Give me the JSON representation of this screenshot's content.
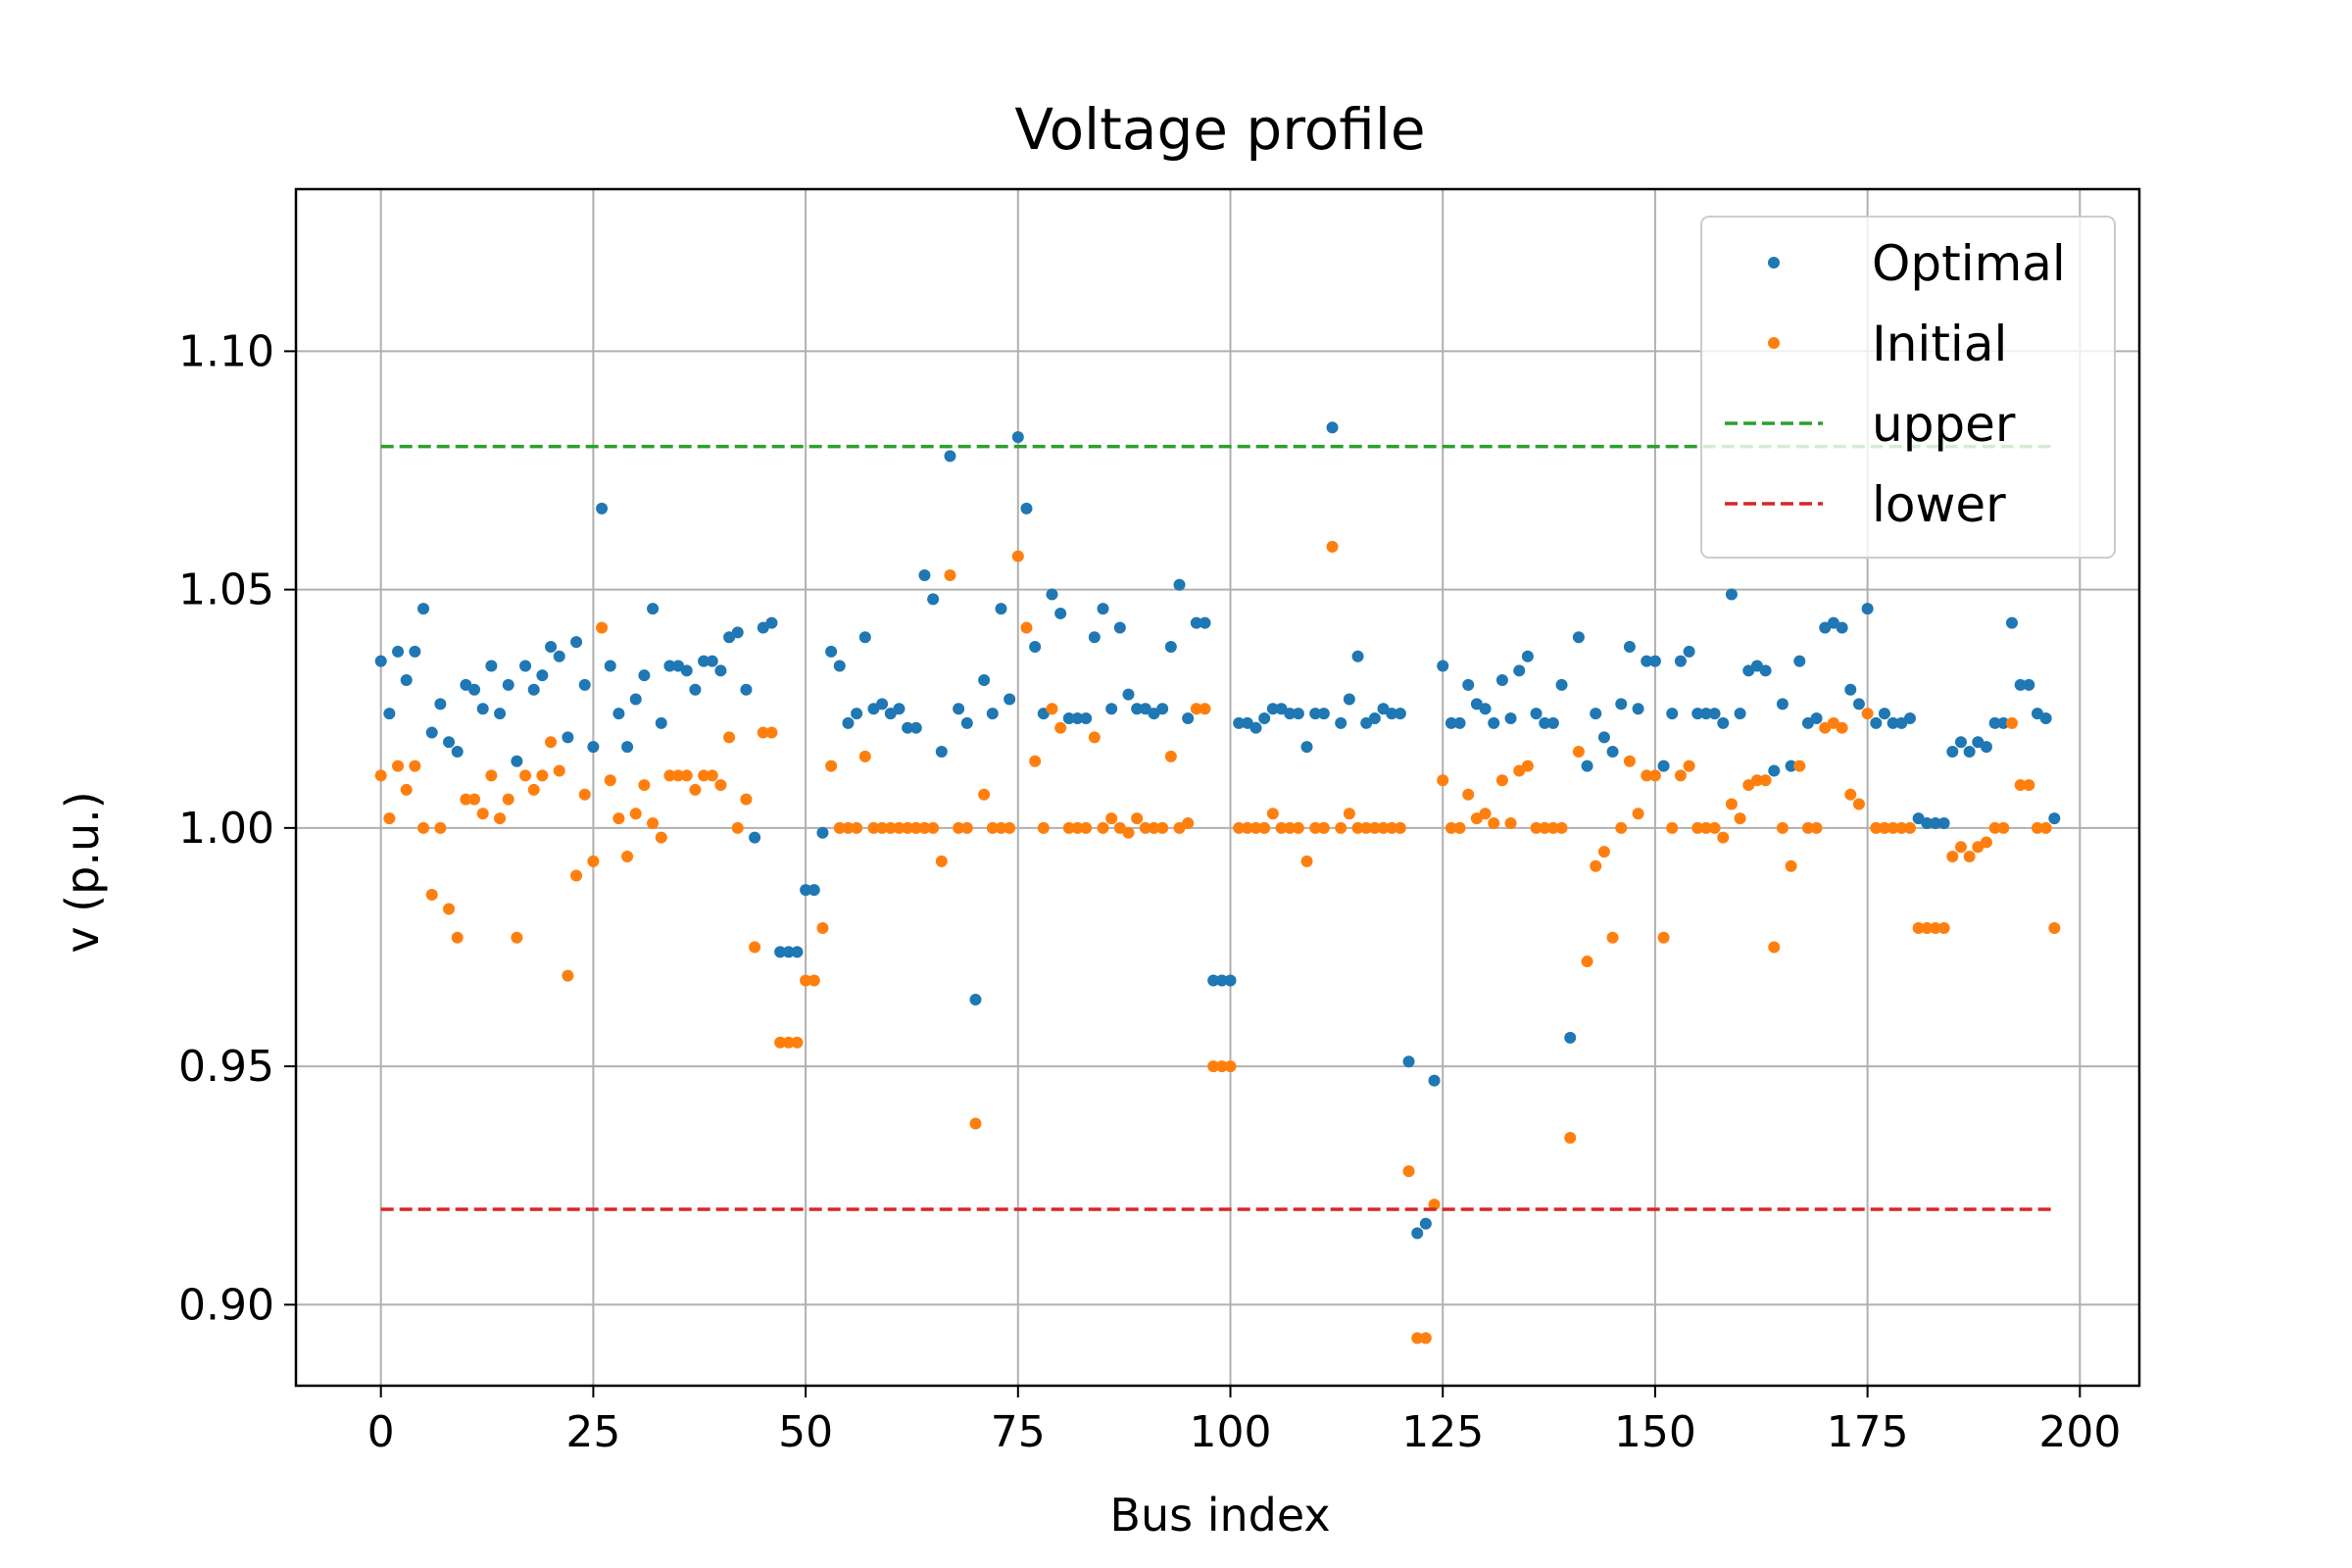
{
  "chart_data": {
    "type": "scatter",
    "title": "Voltage profile",
    "xlabel": "Bus index",
    "ylabel": "v (p.u.)",
    "xlim": [
      -10,
      207
    ],
    "ylim": [
      0.883,
      1.134
    ],
    "xticks": [
      0,
      25,
      50,
      75,
      100,
      125,
      150,
      175,
      200
    ],
    "yticks": [
      0.9,
      0.95,
      1.0,
      1.05,
      1.1
    ],
    "xtick_labels": [
      "0",
      "25",
      "50",
      "75",
      "100",
      "125",
      "150",
      "175",
      "200"
    ],
    "ytick_labels": [
      "0.90",
      "0.95",
      "1.00",
      "1.05",
      "1.10"
    ],
    "grid": true,
    "legend_position": "top-right",
    "series": [
      {
        "name": "Optimal",
        "kind": "points",
        "color": "#1f77b4",
        "x": [
          0,
          1,
          2,
          3,
          4,
          5,
          6,
          7,
          8,
          9,
          10,
          11,
          12,
          13,
          14,
          15,
          16,
          17,
          18,
          19,
          20,
          21,
          22,
          23,
          24,
          25,
          26,
          27,
          28,
          29,
          30,
          31,
          32,
          33,
          34,
          35,
          36,
          37,
          38,
          39,
          40,
          41,
          42,
          43,
          44,
          45,
          46,
          47,
          48,
          49,
          50,
          51,
          52,
          53,
          54,
          55,
          56,
          57,
          58,
          59,
          60,
          61,
          62,
          63,
          64,
          65,
          66,
          67,
          68,
          69,
          70,
          71,
          72,
          73,
          74,
          75,
          76,
          77,
          78,
          79,
          80,
          81,
          82,
          83,
          84,
          85,
          86,
          87,
          88,
          89,
          90,
          91,
          92,
          93,
          94,
          95,
          96,
          97,
          98,
          99,
          100,
          101,
          102,
          103,
          104,
          105,
          106,
          107,
          108,
          109,
          110,
          111,
          112,
          113,
          114,
          115,
          116,
          117,
          118,
          119,
          120,
          121,
          122,
          123,
          124,
          125,
          126,
          127,
          128,
          129,
          130,
          131,
          132,
          133,
          134,
          135,
          136,
          137,
          138,
          139,
          140,
          141,
          142,
          143,
          144,
          145,
          146,
          147,
          148,
          149,
          150,
          151,
          152,
          153,
          154,
          155,
          156,
          157,
          158,
          159,
          160,
          161,
          162,
          163,
          164,
          165,
          166,
          167,
          168,
          169,
          170,
          171,
          172,
          173,
          174,
          175,
          176,
          177,
          178,
          179,
          180,
          181,
          182,
          183,
          184,
          185,
          186,
          187,
          188,
          189,
          190,
          191,
          192,
          193,
          194,
          195,
          196,
          197
        ],
        "y": [
          1.035,
          1.024,
          1.037,
          1.031,
          1.037,
          1.046,
          1.02,
          1.026,
          1.018,
          1.016,
          1.03,
          1.029,
          1.025,
          1.034,
          1.024,
          1.03,
          1.014,
          1.034,
          1.029,
          1.032,
          1.038,
          1.036,
          1.019,
          1.039,
          1.03,
          1.017,
          1.067,
          1.034,
          1.024,
          1.017,
          1.027,
          1.032,
          1.046,
          1.022,
          1.034,
          1.034,
          1.033,
          1.029,
          1.035,
          1.035,
          1.033,
          1.04,
          1.041,
          1.029,
          0.998,
          1.042,
          1.043,
          0.974,
          0.974,
          0.974,
          0.987,
          0.987,
          0.999,
          1.037,
          1.034,
          1.022,
          1.024,
          1.04,
          1.025,
          1.026,
          1.024,
          1.025,
          1.021,
          1.021,
          1.053,
          1.048,
          1.016,
          1.078,
          1.025,
          1.022,
          0.964,
          1.031,
          1.024,
          1.046,
          1.027,
          1.082,
          1.067,
          1.038,
          1.024,
          1.049,
          1.045,
          1.023,
          1.023,
          1.023,
          1.04,
          1.046,
          1.025,
          1.042,
          1.028,
          1.025,
          1.025,
          1.024,
          1.025,
          1.038,
          1.051,
          1.023,
          1.043,
          1.043,
          0.968,
          0.968,
          0.968,
          1.022,
          1.022,
          1.021,
          1.023,
          1.025,
          1.025,
          1.024,
          1.024,
          1.017,
          1.024,
          1.024,
          1.084,
          1.022,
          1.027,
          1.036,
          1.022,
          1.023,
          1.025,
          1.024,
          1.024,
          0.951,
          0.915,
          0.917,
          0.947,
          1.034,
          1.022,
          1.022,
          1.03,
          1.026,
          1.025,
          1.022,
          1.031,
          1.023,
          1.033,
          1.036,
          1.024,
          1.022,
          1.022,
          1.03,
          0.956,
          1.04,
          1.013,
          1.024,
          1.019,
          1.016,
          1.026,
          1.038,
          1.025,
          1.035,
          1.035,
          1.013,
          1.024,
          1.035,
          1.037,
          1.024,
          1.024,
          1.024,
          1.022,
          1.049,
          1.024,
          1.033,
          1.034,
          1.033,
          1.012,
          1.026,
          1.013,
          1.035,
          1.022,
          1.023,
          1.042,
          1.043,
          1.042,
          1.029,
          1.026,
          1.046,
          1.022,
          1.024,
          1.022,
          1.022,
          1.023,
          1.002,
          1.001,
          1.001,
          1.001,
          1.016,
          1.018,
          1.016,
          1.018,
          1.017,
          1.022,
          1.022,
          1.043,
          1.03,
          1.03,
          1.024,
          1.023,
          1.002
        ]
      },
      {
        "name": "Initial",
        "kind": "points",
        "color": "#ff7f0e",
        "x": [
          0,
          1,
          2,
          3,
          4,
          5,
          6,
          7,
          8,
          9,
          10,
          11,
          12,
          13,
          14,
          15,
          16,
          17,
          18,
          19,
          20,
          21,
          22,
          23,
          24,
          25,
          26,
          27,
          28,
          29,
          30,
          31,
          32,
          33,
          34,
          35,
          36,
          37,
          38,
          39,
          40,
          41,
          42,
          43,
          44,
          45,
          46,
          47,
          48,
          49,
          50,
          51,
          52,
          53,
          54,
          55,
          56,
          57,
          58,
          59,
          60,
          61,
          62,
          63,
          64,
          65,
          66,
          67,
          68,
          69,
          70,
          71,
          72,
          73,
          74,
          75,
          76,
          77,
          78,
          79,
          80,
          81,
          82,
          83,
          84,
          85,
          86,
          87,
          88,
          89,
          90,
          91,
          92,
          93,
          94,
          95,
          96,
          97,
          98,
          99,
          100,
          101,
          102,
          103,
          104,
          105,
          106,
          107,
          108,
          109,
          110,
          111,
          112,
          113,
          114,
          115,
          116,
          117,
          118,
          119,
          120,
          121,
          122,
          123,
          124,
          125,
          126,
          127,
          128,
          129,
          130,
          131,
          132,
          133,
          134,
          135,
          136,
          137,
          138,
          139,
          140,
          141,
          142,
          143,
          144,
          145,
          146,
          147,
          148,
          149,
          150,
          151,
          152,
          153,
          154,
          155,
          156,
          157,
          158,
          159,
          160,
          161,
          162,
          163,
          164,
          165,
          166,
          167,
          168,
          169,
          170,
          171,
          172,
          173,
          174,
          175,
          176,
          177,
          178,
          179,
          180,
          181,
          182,
          183,
          184,
          185,
          186,
          187,
          188,
          189,
          190,
          191,
          192,
          193,
          194,
          195,
          196,
          197
        ],
        "y": [
          1.011,
          1.002,
          1.013,
          1.008,
          1.013,
          1.0,
          0.986,
          1.0,
          0.983,
          0.977,
          1.006,
          1.006,
          1.003,
          1.011,
          1.002,
          1.006,
          0.977,
          1.011,
          1.008,
          1.011,
          1.018,
          1.012,
          0.969,
          0.99,
          1.007,
          0.993,
          1.042,
          1.01,
          1.002,
          0.994,
          1.003,
          1.009,
          1.001,
          0.998,
          1.011,
          1.011,
          1.011,
          1.008,
          1.011,
          1.011,
          1.009,
          1.019,
          1.0,
          1.006,
          0.975,
          1.02,
          1.02,
          0.955,
          0.955,
          0.955,
          0.968,
          0.968,
          0.979,
          1.013,
          1.0,
          1.0,
          1.0,
          1.015,
          1.0,
          1.0,
          1.0,
          1.0,
          1.0,
          1.0,
          1.0,
          1.0,
          0.993,
          1.053,
          1.0,
          1.0,
          0.938,
          1.007,
          1.0,
          1.0,
          1.0,
          1.057,
          1.042,
          1.014,
          1.0,
          1.025,
          1.021,
          1.0,
          1.0,
          1.0,
          1.019,
          1.0,
          1.002,
          1.0,
          0.999,
          1.002,
          1.0,
          1.0,
          1.0,
          1.015,
          1.0,
          1.001,
          1.025,
          1.025,
          0.95,
          0.95,
          0.95,
          1.0,
          1.0,
          1.0,
          1.0,
          1.003,
          1.0,
          1.0,
          1.0,
          0.993,
          1.0,
          1.0,
          1.059,
          1.0,
          1.003,
          1.0,
          1.0,
          1.0,
          1.0,
          1.0,
          1.0,
          0.928,
          0.893,
          0.893,
          0.921,
          1.01,
          1.0,
          1.0,
          1.007,
          1.002,
          1.003,
          1.001,
          1.01,
          1.001,
          1.012,
          1.013,
          1.0,
          1.0,
          1.0,
          1.0,
          0.935,
          1.016,
          0.972,
          0.992,
          0.995,
          0.977,
          1.0,
          1.014,
          1.003,
          1.011,
          1.011,
          0.977,
          1.0,
          1.011,
          1.013,
          1.0,
          1.0,
          1.0,
          0.998,
          1.005,
          1.002,
          1.009,
          1.01,
          1.01,
          0.975,
          1.0,
          0.992,
          1.013,
          1.0,
          1.0,
          1.021,
          1.022,
          1.021,
          1.007,
          1.005,
          1.024,
          1.0,
          1.0,
          1.0,
          1.0,
          1.0,
          0.979,
          0.979,
          0.979,
          0.979,
          0.994,
          0.996,
          0.994,
          0.996,
          0.997,
          1.0,
          1.0,
          1.022,
          1.009,
          1.009,
          1.0,
          1.0,
          0.979
        ]
      },
      {
        "name": "upper",
        "kind": "dashed-line",
        "color": "#2ca02c",
        "x": [
          0,
          197
        ],
        "y": [
          1.08,
          1.08
        ]
      },
      {
        "name": "lower",
        "kind": "dashed-line",
        "color": "#d62728",
        "x": [
          0,
          197
        ],
        "y": [
          0.92,
          0.92
        ]
      }
    ]
  }
}
